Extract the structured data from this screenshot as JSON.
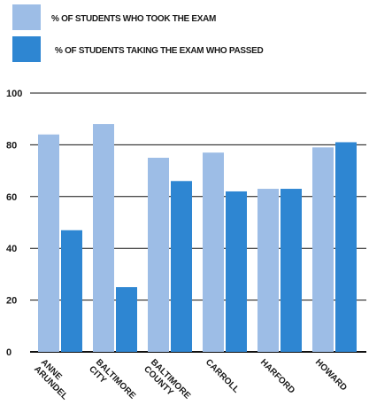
{
  "colors": {
    "series1": "#9dbde6",
    "series2": "#2e86d2",
    "axis": "#111111"
  },
  "chart_data": {
    "type": "bar",
    "title": "",
    "xlabel": "",
    "ylabel": "",
    "ylim": [
      0,
      100
    ],
    "yticks": [
      "0",
      "20",
      "40",
      "60",
      "80",
      "100"
    ],
    "categories": [
      [
        "ANNE",
        "ARUNDEL"
      ],
      [
        "BALTIMORE",
        "CITY"
      ],
      [
        "BALTIMORE",
        "COUNTY"
      ],
      [
        "CARROLL"
      ],
      [
        "HARFORD"
      ],
      [
        "HOWARD"
      ]
    ],
    "series": [
      {
        "name": "% OF STUDENTS WHO TOOK THE EXAM",
        "values": [
          84,
          88,
          75,
          77,
          63,
          79
        ]
      },
      {
        "name": "% OF STUDENTS TAKING THE EXAM WHO PASSED",
        "values": [
          47,
          25,
          66,
          62,
          63,
          81
        ]
      }
    ],
    "grid": "horizontal",
    "legend": "top-left"
  }
}
